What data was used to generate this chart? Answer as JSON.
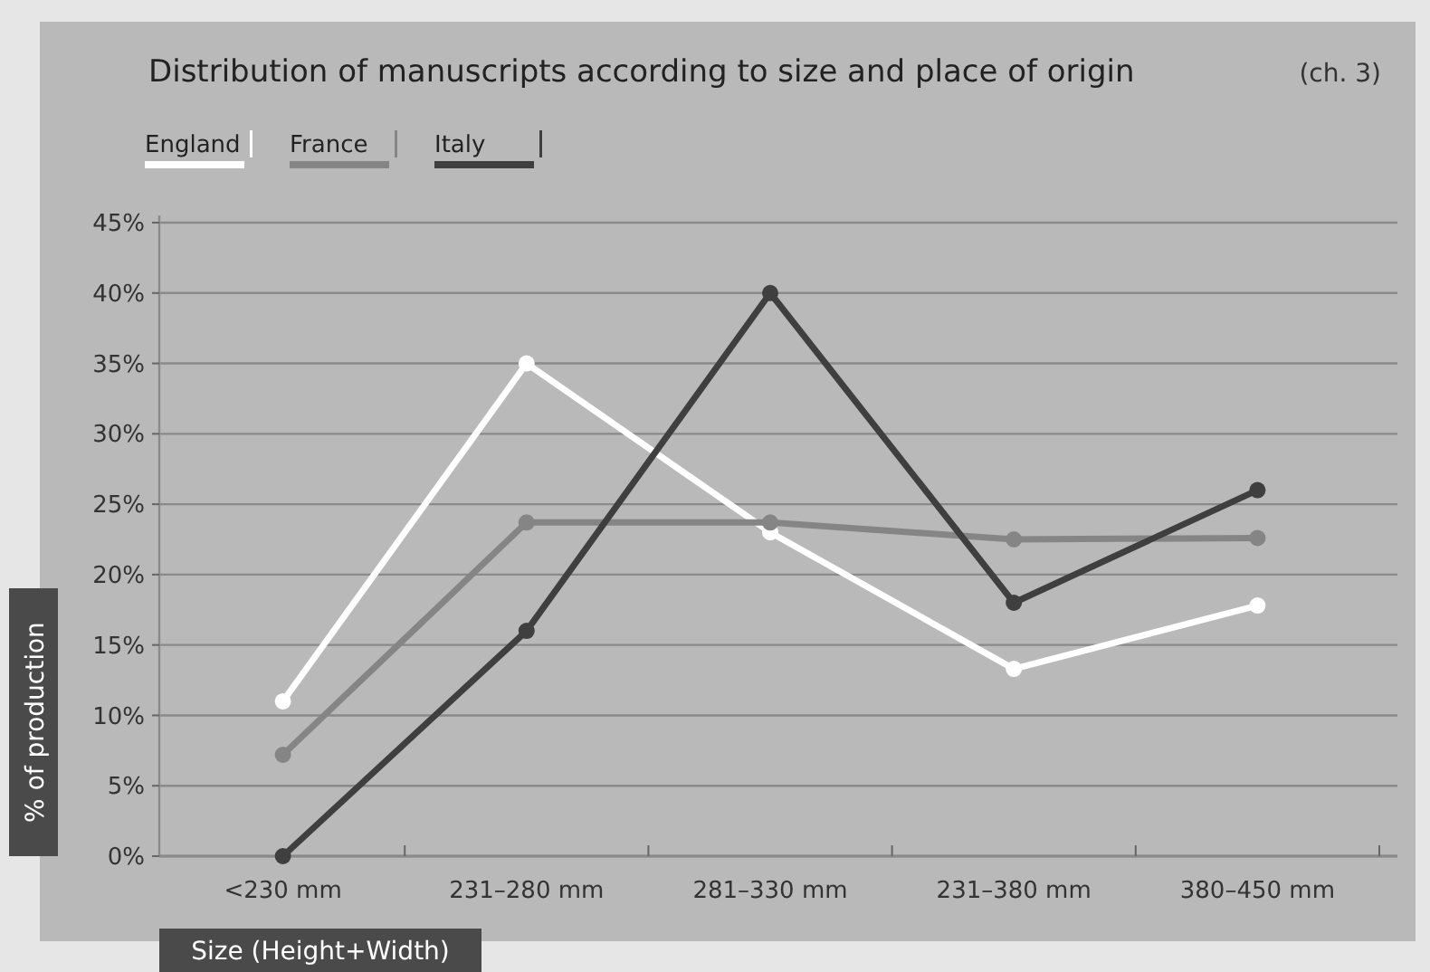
{
  "chart_data": {
    "type": "line",
    "title": "Distribution of manuscripts according to size and place of origin",
    "annotations": [
      "(ch. 3)"
    ],
    "xlabel": "Size (Height+Width)",
    "ylabel": "% of production",
    "categories": [
      "<230 mm",
      "231–280 mm",
      "281–330 mm",
      "231–380 mm",
      "380–450 mm"
    ],
    "series": [
      {
        "name": "England",
        "color": "#ffffff",
        "values": [
          11,
          35,
          23,
          13.3,
          17.8
        ]
      },
      {
        "name": "France",
        "color": "#858585",
        "values": [
          7.2,
          23.7,
          23.7,
          22.5,
          22.6
        ]
      },
      {
        "name": "Italy",
        "color": "#3f3f3f",
        "values": [
          0,
          16,
          40,
          18,
          26
        ]
      }
    ],
    "ylim": [
      0,
      45
    ],
    "yticks": [
      {
        "value": 0,
        "label": "0%"
      },
      {
        "value": 5,
        "label": "5%"
      },
      {
        "value": 10,
        "label": "10%"
      },
      {
        "value": 15,
        "label": "15%"
      },
      {
        "value": 20,
        "label": "20%"
      },
      {
        "value": 25,
        "label": "25%"
      },
      {
        "value": 30,
        "label": "30%"
      },
      {
        "value": 35,
        "label": "35%"
      },
      {
        "value": 40,
        "label": "40%"
      },
      {
        "value": 45,
        "label": "45%"
      }
    ],
    "grid": "y",
    "legend": "top left",
    "marker": "circle",
    "line_style": "solid"
  }
}
